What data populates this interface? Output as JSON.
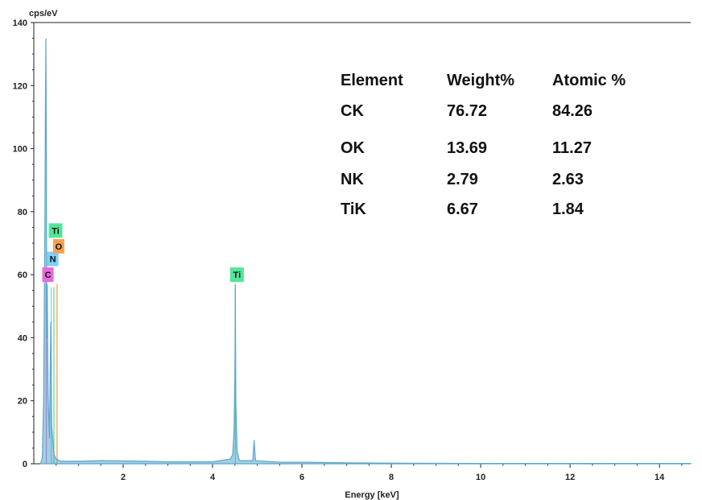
{
  "chart_data": {
    "type": "line",
    "ylabel": "cps/eV",
    "xlabel": "Energy [keV]",
    "xlim": [
      0,
      14.7
    ],
    "ylim": [
      0,
      140
    ],
    "x_ticks": [
      2,
      4,
      6,
      8,
      10,
      12,
      14
    ],
    "y_ticks": [
      0,
      20,
      40,
      60,
      80,
      100,
      120,
      140
    ],
    "grid": false,
    "series": [
      {
        "color": "#5aa7c9",
        "points": [
          [
            0.15,
            0
          ],
          [
            0.19,
            2
          ],
          [
            0.22,
            20
          ],
          [
            0.25,
            80
          ],
          [
            0.26,
            113
          ],
          [
            0.27,
            135
          ],
          [
            0.28,
            100
          ],
          [
            0.29,
            40
          ],
          [
            0.3,
            57
          ],
          [
            0.32,
            22
          ],
          [
            0.35,
            8
          ],
          [
            0.38,
            45
          ],
          [
            0.4,
            12
          ],
          [
            0.45,
            3
          ],
          [
            0.5,
            1.5
          ],
          [
            0.6,
            0.8
          ],
          [
            1.0,
            0.8
          ],
          [
            1.5,
            1.0
          ],
          [
            2.0,
            0.9
          ],
          [
            2.5,
            0.8
          ],
          [
            3.0,
            0.6
          ],
          [
            3.5,
            0.6
          ],
          [
            4.0,
            0.6
          ],
          [
            4.4,
            1.5
          ],
          [
            4.45,
            3
          ],
          [
            4.48,
            10
          ],
          [
            4.5,
            29
          ],
          [
            4.51,
            57
          ],
          [
            4.52,
            20
          ],
          [
            4.55,
            4
          ],
          [
            4.6,
            1
          ],
          [
            4.9,
            1
          ],
          [
            4.93,
            7.5
          ],
          [
            4.96,
            1
          ],
          [
            5.5,
            0.5
          ],
          [
            6.0,
            0.5
          ],
          [
            7.0,
            0.3
          ],
          [
            8.0,
            0.2
          ],
          [
            10.0,
            0.1
          ],
          [
            12.0,
            0.1
          ],
          [
            14.7,
            0.1
          ]
        ]
      }
    ],
    "peak_markers": [
      {
        "label": "C",
        "energy": 0.28,
        "color": "#e46bd8",
        "line_height": 58,
        "label_value": 60
      },
      {
        "label": "N",
        "energy": 0.39,
        "color": "#7fd0ff",
        "line_height": 56,
        "label_value": 65
      },
      {
        "label": "Ti",
        "energy": 0.45,
        "color": "#53e59a",
        "line_height": 56,
        "label_value": 74
      },
      {
        "label": "O",
        "energy": 0.52,
        "color": "#f5a153",
        "line_height": 57,
        "label_value": 69
      },
      {
        "label": "Ti",
        "energy": 4.51,
        "color": "#53e59a",
        "line_height": 57,
        "label_value": 60
      }
    ],
    "table": {
      "headers": [
        "Element",
        "Weight%",
        "Atomic %"
      ],
      "rows": [
        [
          "CK",
          "76.72",
          "84.26"
        ],
        [
          "OK",
          "13.69",
          "11.27"
        ],
        [
          "NK",
          "2.79",
          "2.63"
        ],
        [
          "TiK",
          "6.67",
          "1.84"
        ]
      ]
    }
  }
}
